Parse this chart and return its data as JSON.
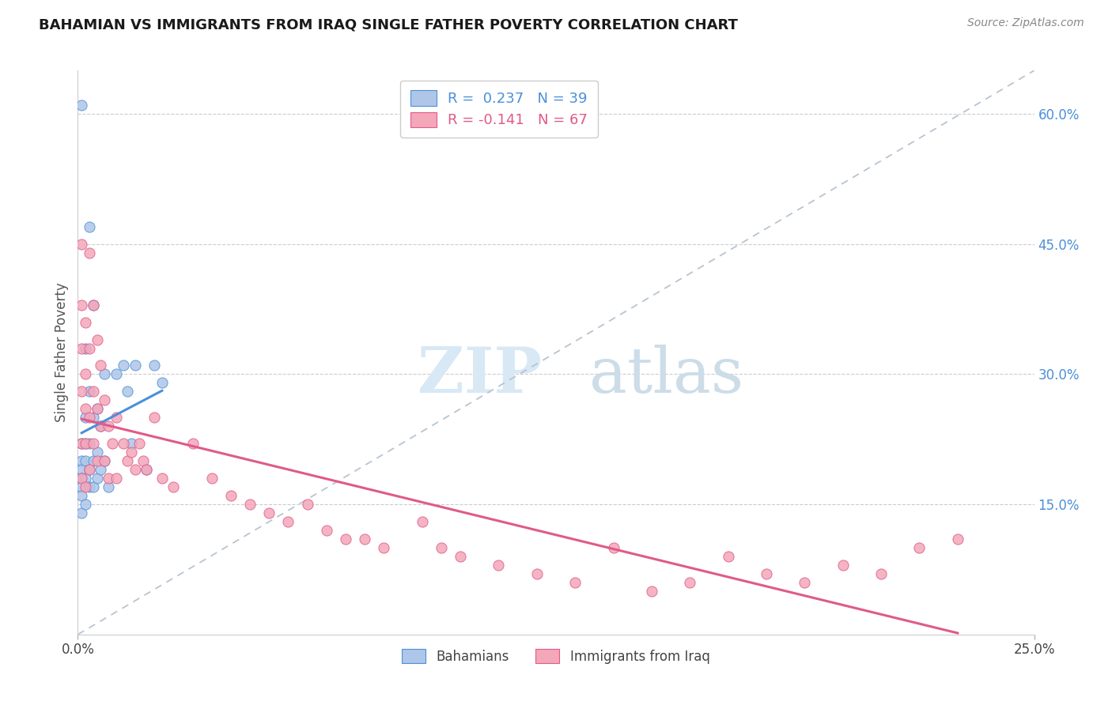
{
  "title": "BAHAMIAN VS IMMIGRANTS FROM IRAQ SINGLE FATHER POVERTY CORRELATION CHART",
  "source": "Source: ZipAtlas.com",
  "ylabel": "Single Father Poverty",
  "legend_label1": "Bahamians",
  "legend_label2": "Immigrants from Iraq",
  "r1": 0.237,
  "n1": 39,
  "r2": -0.141,
  "n2": 67,
  "xlim": [
    0.0,
    0.25
  ],
  "ylim": [
    0.0,
    0.65
  ],
  "yticks": [
    0.15,
    0.3,
    0.45,
    0.6
  ],
  "ytick_labels": [
    "15.0%",
    "30.0%",
    "45.0%",
    "60.0%"
  ],
  "color_blue": "#aec6e8",
  "color_pink": "#f4a7b9",
  "line_color_blue": "#4a90d9",
  "line_color_pink": "#e05a8a",
  "diag_line_color": "#b8c4d0",
  "bahamians_x": [
    0.001,
    0.001,
    0.001,
    0.001,
    0.001,
    0.001,
    0.001,
    0.001,
    0.002,
    0.002,
    0.002,
    0.002,
    0.002,
    0.002,
    0.003,
    0.003,
    0.003,
    0.003,
    0.003,
    0.004,
    0.004,
    0.004,
    0.004,
    0.005,
    0.005,
    0.005,
    0.006,
    0.006,
    0.007,
    0.007,
    0.008,
    0.01,
    0.012,
    0.013,
    0.014,
    0.015,
    0.018,
    0.02,
    0.022
  ],
  "bahamians_y": [
    0.61,
    0.22,
    0.2,
    0.19,
    0.18,
    0.17,
    0.16,
    0.14,
    0.33,
    0.25,
    0.22,
    0.2,
    0.18,
    0.15,
    0.47,
    0.28,
    0.22,
    0.19,
    0.17,
    0.38,
    0.25,
    0.2,
    0.17,
    0.26,
    0.21,
    0.18,
    0.24,
    0.19,
    0.3,
    0.2,
    0.17,
    0.3,
    0.31,
    0.28,
    0.22,
    0.31,
    0.19,
    0.31,
    0.29
  ],
  "iraq_x": [
    0.001,
    0.001,
    0.001,
    0.001,
    0.001,
    0.001,
    0.002,
    0.002,
    0.002,
    0.002,
    0.002,
    0.003,
    0.003,
    0.003,
    0.003,
    0.004,
    0.004,
    0.004,
    0.005,
    0.005,
    0.005,
    0.006,
    0.006,
    0.007,
    0.007,
    0.008,
    0.008,
    0.009,
    0.01,
    0.01,
    0.012,
    0.013,
    0.014,
    0.015,
    0.016,
    0.017,
    0.018,
    0.02,
    0.022,
    0.025,
    0.03,
    0.035,
    0.04,
    0.045,
    0.05,
    0.055,
    0.06,
    0.065,
    0.07,
    0.075,
    0.08,
    0.09,
    0.095,
    0.1,
    0.11,
    0.12,
    0.13,
    0.14,
    0.15,
    0.16,
    0.17,
    0.18,
    0.19,
    0.2,
    0.21,
    0.22,
    0.23
  ],
  "iraq_y": [
    0.45,
    0.38,
    0.33,
    0.28,
    0.22,
    0.18,
    0.36,
    0.3,
    0.26,
    0.22,
    0.17,
    0.44,
    0.33,
    0.25,
    0.19,
    0.38,
    0.28,
    0.22,
    0.34,
    0.26,
    0.2,
    0.31,
    0.24,
    0.27,
    0.2,
    0.24,
    0.18,
    0.22,
    0.25,
    0.18,
    0.22,
    0.2,
    0.21,
    0.19,
    0.22,
    0.2,
    0.19,
    0.25,
    0.18,
    0.17,
    0.22,
    0.18,
    0.16,
    0.15,
    0.14,
    0.13,
    0.15,
    0.12,
    0.11,
    0.11,
    0.1,
    0.13,
    0.1,
    0.09,
    0.08,
    0.07,
    0.06,
    0.1,
    0.05,
    0.06,
    0.09,
    0.07,
    0.06,
    0.08,
    0.07,
    0.1,
    0.11
  ]
}
